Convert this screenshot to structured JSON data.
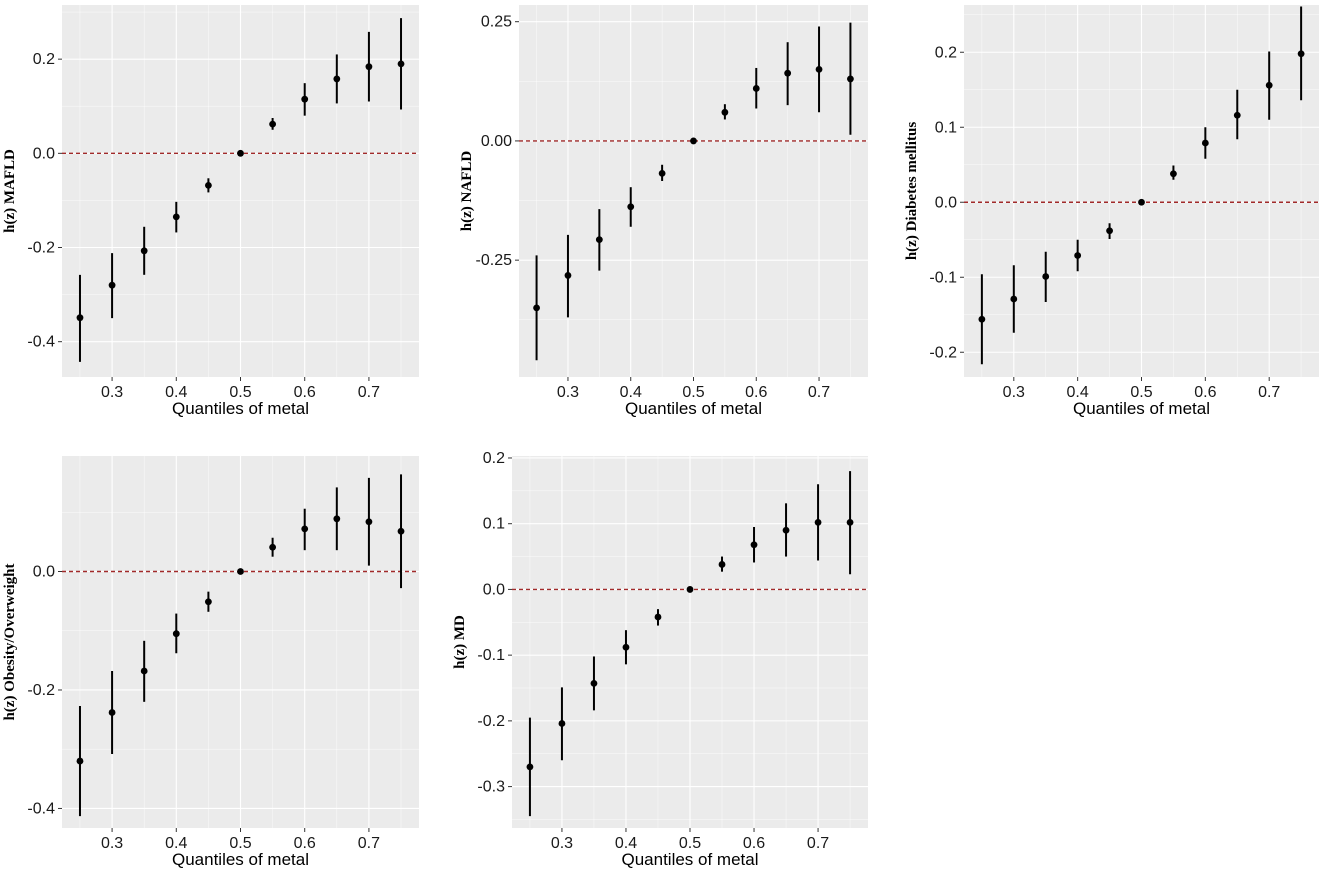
{
  "chart_data": [
    {
      "type": "scatter",
      "title": "",
      "xlabel": "Quantiles of metal",
      "ylabel": "h(z) MAFLD",
      "x": [
        0.25,
        0.3,
        0.35,
        0.4,
        0.45,
        0.5,
        0.55,
        0.6,
        0.65,
        0.7,
        0.75
      ],
      "y": [
        -0.349,
        -0.28,
        -0.207,
        -0.135,
        -0.068,
        0.0,
        0.062,
        0.115,
        0.158,
        0.184,
        0.19
      ],
      "lower": [
        -0.443,
        -0.35,
        -0.258,
        -0.168,
        -0.083,
        0.0,
        0.05,
        0.08,
        0.106,
        0.11,
        0.093
      ],
      "upper": [
        -0.258,
        -0.212,
        -0.156,
        -0.103,
        -0.053,
        0.0,
        0.075,
        0.149,
        0.21,
        0.258,
        0.287
      ],
      "xlim": [
        0.222,
        0.778
      ],
      "ylim": [
        -0.475,
        0.315
      ],
      "xticks": [
        0.3,
        0.4,
        0.5,
        0.6,
        0.7
      ],
      "xtick_labels": [
        "0.3",
        "0.4",
        "0.5",
        "0.6",
        "0.7"
      ],
      "yticks": [
        -0.4,
        -0.2,
        0.0,
        0.2
      ],
      "ytick_labels": [
        "-0.4",
        "-0.2",
        "0.0",
        "0.2"
      ],
      "reference_line": 0
    },
    {
      "type": "scatter",
      "title": "",
      "xlabel": "Quantiles of metal",
      "ylabel": "h(z) NAFLD",
      "x": [
        0.25,
        0.3,
        0.35,
        0.4,
        0.45,
        0.5,
        0.55,
        0.6,
        0.65,
        0.7,
        0.75
      ],
      "y": [
        -0.35,
        -0.282,
        -0.207,
        -0.138,
        -0.068,
        0.0,
        0.06,
        0.11,
        0.142,
        0.15,
        0.13
      ],
      "lower": [
        -0.46,
        -0.37,
        -0.272,
        -0.18,
        -0.084,
        0.0,
        0.045,
        0.068,
        0.075,
        0.06,
        0.013
      ],
      "upper": [
        -0.24,
        -0.197,
        -0.143,
        -0.097,
        -0.05,
        0.0,
        0.077,
        0.153,
        0.207,
        0.24,
        0.248
      ],
      "xlim": [
        0.222,
        0.778
      ],
      "ylim": [
        -0.495,
        0.285
      ],
      "xticks": [
        0.3,
        0.4,
        0.5,
        0.6,
        0.7
      ],
      "xtick_labels": [
        "0.3",
        "0.4",
        "0.5",
        "0.6",
        "0.7"
      ],
      "yticks": [
        -0.25,
        0.0,
        0.25
      ],
      "ytick_labels": [
        "-0.25",
        "0.00",
        "0.25"
      ],
      "reference_line": 0
    },
    {
      "type": "scatter",
      "title": "",
      "xlabel": "Quantiles of metal",
      "ylabel": "h(z) Diabetes mellitus",
      "x": [
        0.25,
        0.3,
        0.35,
        0.4,
        0.45,
        0.5,
        0.55,
        0.6,
        0.65,
        0.7,
        0.75
      ],
      "y": [
        -0.156,
        -0.129,
        -0.099,
        -0.071,
        -0.038,
        0.0,
        0.038,
        0.079,
        0.116,
        0.156,
        0.198
      ],
      "lower": [
        -0.216,
        -0.174,
        -0.133,
        -0.092,
        -0.049,
        0.0,
        0.03,
        0.058,
        0.084,
        0.11,
        0.136
      ],
      "upper": [
        -0.096,
        -0.084,
        -0.066,
        -0.05,
        -0.028,
        0.0,
        0.049,
        0.1,
        0.15,
        0.201,
        0.261
      ],
      "xlim": [
        0.222,
        0.778
      ],
      "ylim": [
        -0.233,
        0.263
      ],
      "xticks": [
        0.3,
        0.4,
        0.5,
        0.6,
        0.7
      ],
      "xtick_labels": [
        "0.3",
        "0.4",
        "0.5",
        "0.6",
        "0.7"
      ],
      "yticks": [
        -0.2,
        -0.1,
        0.0,
        0.1,
        0.2
      ],
      "ytick_labels": [
        "-0.2",
        "-0.1",
        "0.0",
        "0.1",
        "0.2"
      ],
      "reference_line": 0
    },
    {
      "type": "scatter",
      "title": "",
      "xlabel": "Quantiles of metal",
      "ylabel": "h(z) Obesity/Overweight",
      "x": [
        0.25,
        0.3,
        0.35,
        0.4,
        0.45,
        0.5,
        0.55,
        0.6,
        0.65,
        0.7,
        0.75
      ],
      "y": [
        -0.32,
        -0.238,
        -0.168,
        -0.105,
        -0.051,
        0.0,
        0.041,
        0.072,
        0.089,
        0.084,
        0.068
      ],
      "lower": [
        -0.413,
        -0.308,
        -0.22,
        -0.138,
        -0.068,
        0.0,
        0.025,
        0.036,
        0.036,
        0.01,
        -0.028
      ],
      "upper": [
        -0.227,
        -0.168,
        -0.117,
        -0.071,
        -0.034,
        0.0,
        0.057,
        0.106,
        0.142,
        0.158,
        0.164
      ],
      "xlim": [
        0.222,
        0.778
      ],
      "ylim": [
        -0.433,
        0.195
      ],
      "xticks": [
        0.3,
        0.4,
        0.5,
        0.6,
        0.7
      ],
      "xtick_labels": [
        "0.3",
        "0.4",
        "0.5",
        "0.6",
        "0.7"
      ],
      "yticks": [
        -0.4,
        -0.2,
        0.0
      ],
      "ytick_labels": [
        "-0.4",
        "-0.2",
        "0.0"
      ],
      "reference_line": 0
    },
    {
      "type": "scatter",
      "title": "",
      "xlabel": "Quantiles of metal",
      "ylabel": "h(z) MD",
      "x": [
        0.25,
        0.3,
        0.35,
        0.4,
        0.45,
        0.5,
        0.55,
        0.6,
        0.65,
        0.7,
        0.75
      ],
      "y": [
        -0.27,
        -0.204,
        -0.143,
        -0.088,
        -0.042,
        0.0,
        0.038,
        0.068,
        0.09,
        0.102,
        0.102
      ],
      "lower": [
        -0.345,
        -0.26,
        -0.184,
        -0.114,
        -0.055,
        0.0,
        0.027,
        0.041,
        0.05,
        0.044,
        0.023
      ],
      "upper": [
        -0.195,
        -0.149,
        -0.102,
        -0.062,
        -0.03,
        0.0,
        0.05,
        0.095,
        0.131,
        0.16,
        0.18
      ],
      "xlim": [
        0.222,
        0.778
      ],
      "ylim": [
        -0.363,
        0.203
      ],
      "xticks": [
        0.3,
        0.4,
        0.5,
        0.6,
        0.7
      ],
      "xtick_labels": [
        "0.3",
        "0.4",
        "0.5",
        "0.6",
        "0.7"
      ],
      "yticks": [
        -0.3,
        -0.2,
        -0.1,
        0.0,
        0.1,
        0.2
      ],
      "ytick_labels": [
        "-0.3",
        "-0.2",
        "-0.1",
        "0.0",
        "0.1",
        "0.2"
      ],
      "reference_line": 0
    }
  ]
}
